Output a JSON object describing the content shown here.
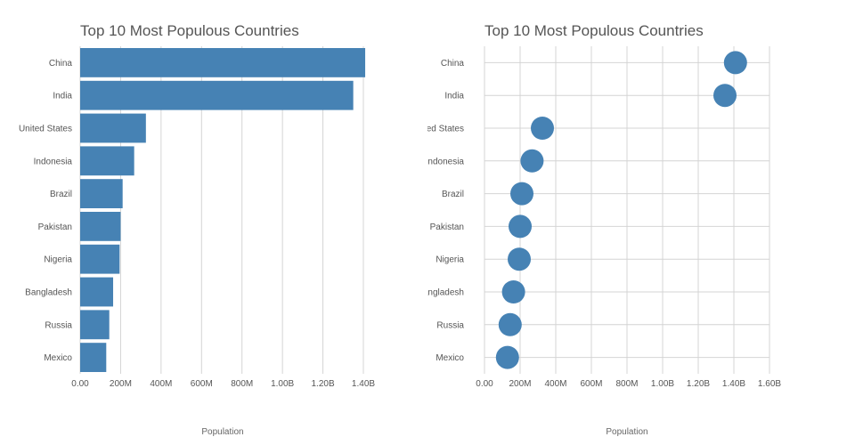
{
  "chart_data": [
    {
      "type": "bar",
      "orientation": "horizontal",
      "title": "Top 10 Most Populous Countries",
      "xlabel": "Population",
      "ylabel": "",
      "categories": [
        "China",
        "India",
        "United States",
        "Indonesia",
        "Brazil",
        "Pakistan",
        "Nigeria",
        "Bangladesh",
        "Russia",
        "Mexico"
      ],
      "values": [
        1409000000,
        1350000000,
        325000000,
        267000000,
        210000000,
        200000000,
        195000000,
        163000000,
        144000000,
        129000000
      ],
      "x_ticks": [
        "0.00",
        "200M",
        "400M",
        "600M",
        "800M",
        "1.00B",
        "1.20B",
        "1.40B"
      ],
      "xlim": [
        0,
        1400000000
      ],
      "grid": "vertical",
      "color": "#4682b4"
    },
    {
      "type": "scatter",
      "title": "Top 10 Most Populous Countries",
      "xlabel": "Population",
      "ylabel": "",
      "categories": [
        "China",
        "India",
        "United States",
        "Indonesia",
        "Brazil",
        "Pakistan",
        "Nigeria",
        "Bangladesh",
        "Russia",
        "Mexico"
      ],
      "values": [
        1409000000,
        1350000000,
        325000000,
        267000000,
        210000000,
        200000000,
        195000000,
        163000000,
        144000000,
        129000000
      ],
      "x_ticks": [
        "0.00",
        "200M",
        "400M",
        "600M",
        "800M",
        "1.00B",
        "1.20B",
        "1.40B",
        "1.60B"
      ],
      "xlim": [
        0,
        1600000000
      ],
      "grid": "both",
      "color": "#4682b4"
    }
  ]
}
